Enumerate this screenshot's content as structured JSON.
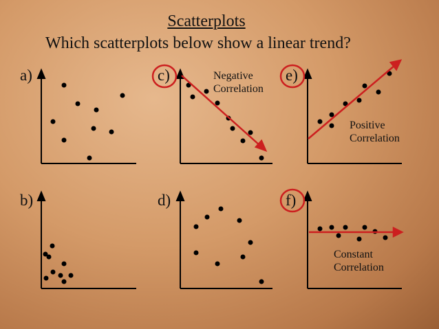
{
  "title": "Scatterplots",
  "question": "Which scatterplots below show a linear trend?",
  "panels": [
    {
      "id": "a",
      "label": "a)",
      "highlighted": false
    },
    {
      "id": "c",
      "label": "c)",
      "highlighted": true,
      "note": "Negative\nCorrelation",
      "trend": "negative"
    },
    {
      "id": "e",
      "label": "e)",
      "highlighted": true,
      "note": "Positive\nCorrelation",
      "trend": "positive"
    },
    {
      "id": "b",
      "label": "b)",
      "highlighted": false
    },
    {
      "id": "d",
      "label": "d)",
      "highlighted": false
    },
    {
      "id": "f",
      "label": "f)",
      "highlighted": true,
      "note": "Constant\nCorrelation",
      "trend": "constant"
    }
  ],
  "colors": {
    "background": "#d49a68",
    "axis": "#000000",
    "point": "#000000",
    "trend_line": "#cc1f1f",
    "highlight_circle": "#cc1f1f"
  }
}
